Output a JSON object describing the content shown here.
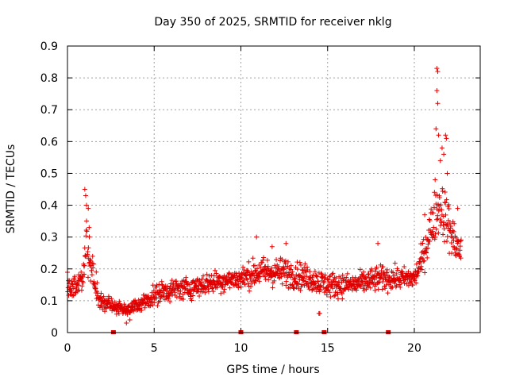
{
  "chart_data": {
    "type": "scatter",
    "title": "Day 350 of 2025, SRMTID for receiver nklg",
    "xlabel": "GPS time / hours",
    "ylabel": "SRMTID / TECUs",
    "xlim": [
      0,
      23.8
    ],
    "ylim": [
      0,
      0.9
    ],
    "x_ticks": [
      0,
      5,
      10,
      15,
      20
    ],
    "y_ticks": [
      0,
      0.1,
      0.2,
      0.3,
      0.4,
      0.5,
      0.6,
      0.7,
      0.8,
      0.9
    ],
    "x_tick_labels": [
      "0",
      "5",
      "10",
      "15",
      "20"
    ],
    "y_tick_labels": [
      "0",
      "0.1",
      "0.2",
      "0.3",
      "0.4",
      "0.5",
      "0.6",
      "0.7",
      "0.8",
      "0.9"
    ],
    "grid": true,
    "marker": "+",
    "color": "#e00000",
    "series": [
      {
        "name": "SRMTID",
        "trend": [
          {
            "x": 0.0,
            "y": 0.15,
            "spread": 0.07
          },
          {
            "x": 0.5,
            "y": 0.14,
            "spread": 0.07
          },
          {
            "x": 0.9,
            "y": 0.17,
            "spread": 0.1
          },
          {
            "x": 1.1,
            "y": 0.28,
            "spread": 0.14
          },
          {
            "x": 1.4,
            "y": 0.2,
            "spread": 0.1
          },
          {
            "x": 1.8,
            "y": 0.1,
            "spread": 0.05
          },
          {
            "x": 2.5,
            "y": 0.09,
            "spread": 0.04
          },
          {
            "x": 3.5,
            "y": 0.07,
            "spread": 0.03
          },
          {
            "x": 4.5,
            "y": 0.1,
            "spread": 0.05
          },
          {
            "x": 5.5,
            "y": 0.13,
            "spread": 0.06
          },
          {
            "x": 7.0,
            "y": 0.14,
            "spread": 0.06
          },
          {
            "x": 8.5,
            "y": 0.16,
            "spread": 0.06
          },
          {
            "x": 10.0,
            "y": 0.17,
            "spread": 0.06
          },
          {
            "x": 11.0,
            "y": 0.19,
            "spread": 0.08
          },
          {
            "x": 12.5,
            "y": 0.19,
            "spread": 0.08
          },
          {
            "x": 14.0,
            "y": 0.17,
            "spread": 0.07
          },
          {
            "x": 15.0,
            "y": 0.15,
            "spread": 0.07
          },
          {
            "x": 16.5,
            "y": 0.15,
            "spread": 0.06
          },
          {
            "x": 18.0,
            "y": 0.17,
            "spread": 0.07
          },
          {
            "x": 19.0,
            "y": 0.17,
            "spread": 0.06
          },
          {
            "x": 20.0,
            "y": 0.17,
            "spread": 0.06
          },
          {
            "x": 20.4,
            "y": 0.22,
            "spread": 0.08
          },
          {
            "x": 20.9,
            "y": 0.32,
            "spread": 0.12
          },
          {
            "x": 21.4,
            "y": 0.4,
            "spread": 0.16
          },
          {
            "x": 21.7,
            "y": 0.38,
            "spread": 0.16
          },
          {
            "x": 22.2,
            "y": 0.3,
            "spread": 0.12
          },
          {
            "x": 22.7,
            "y": 0.25,
            "spread": 0.08
          }
        ],
        "spikes": [
          {
            "x": 1.0,
            "y": 0.45
          },
          {
            "x": 1.05,
            "y": 0.43
          },
          {
            "x": 1.1,
            "y": 0.4
          },
          {
            "x": 1.2,
            "y": 0.39
          },
          {
            "x": 1.25,
            "y": 0.33
          },
          {
            "x": 21.3,
            "y": 0.83
          },
          {
            "x": 21.35,
            "y": 0.82
          },
          {
            "x": 21.3,
            "y": 0.76
          },
          {
            "x": 21.35,
            "y": 0.72
          },
          {
            "x": 21.25,
            "y": 0.64
          },
          {
            "x": 21.4,
            "y": 0.62
          },
          {
            "x": 21.8,
            "y": 0.62
          },
          {
            "x": 21.85,
            "y": 0.61
          },
          {
            "x": 21.6,
            "y": 0.58
          },
          {
            "x": 21.7,
            "y": 0.56
          },
          {
            "x": 21.5,
            "y": 0.54
          },
          {
            "x": 21.9,
            "y": 0.5
          },
          {
            "x": 21.2,
            "y": 0.48
          },
          {
            "x": 20.6,
            "y": 0.37
          },
          {
            "x": 22.5,
            "y": 0.39
          },
          {
            "x": 10.9,
            "y": 0.3
          },
          {
            "x": 12.6,
            "y": 0.28
          },
          {
            "x": 17.9,
            "y": 0.28
          },
          {
            "x": 11.8,
            "y": 0.27
          },
          {
            "x": 14.5,
            "y": 0.06
          },
          {
            "x": 14.55,
            "y": 0.06
          },
          {
            "x": 3.4,
            "y": 0.03
          },
          {
            "x": 3.6,
            "y": 0.04
          }
        ],
        "count": 1300
      }
    ],
    "data_gaps_x": [
      2.65,
      10.0,
      13.2,
      14.8,
      18.5
    ]
  }
}
